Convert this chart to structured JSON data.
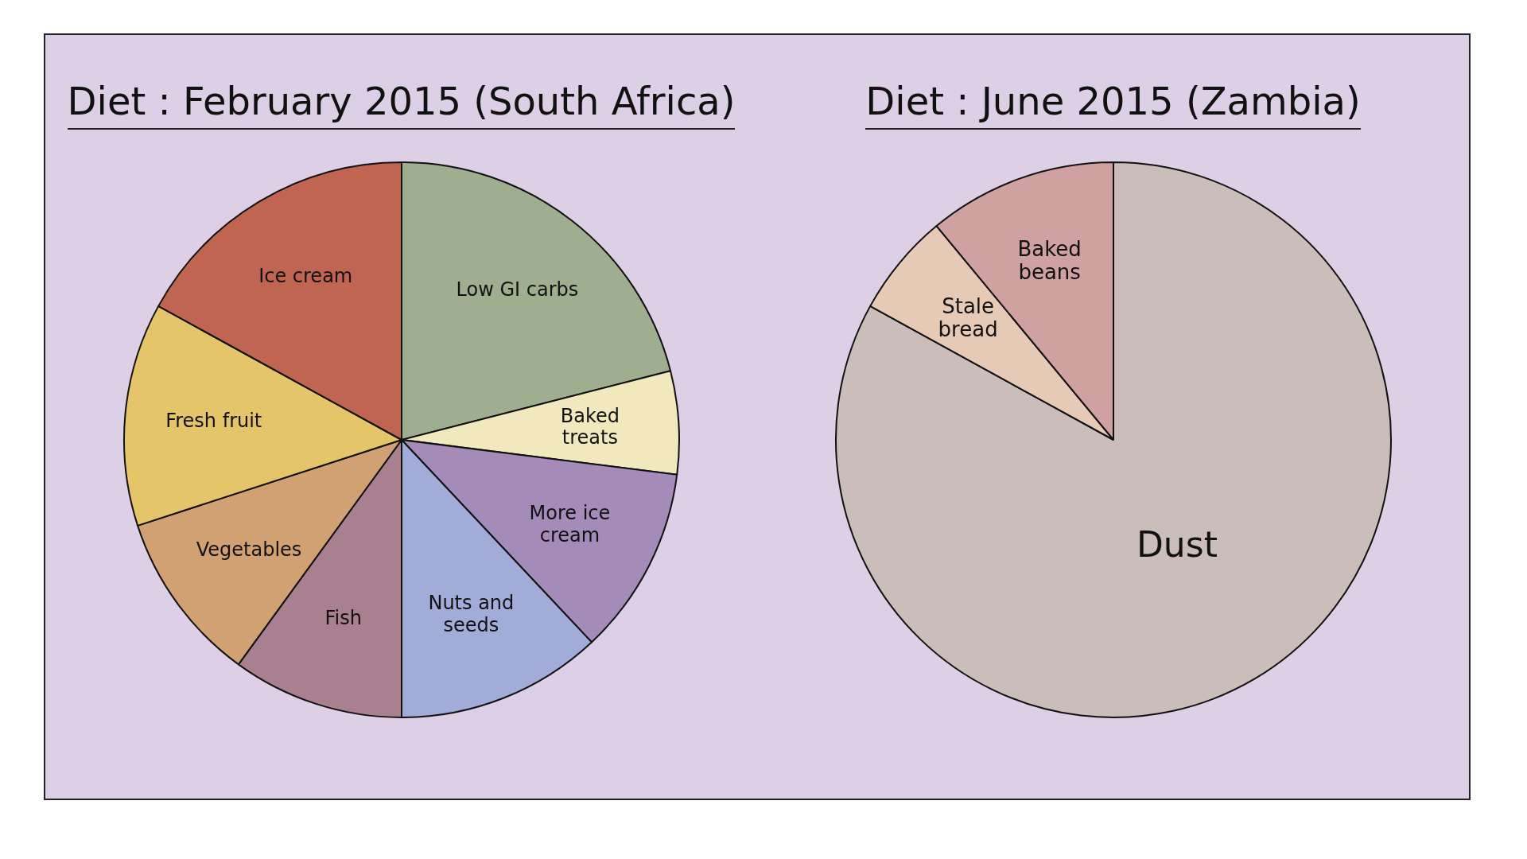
{
  "chart_data": [
    {
      "type": "pie",
      "title": "Diet : February 2015 (South Africa)",
      "categories": [
        "Low GI carbs",
        "Baked treats",
        "More ice cream",
        "Nuts and seeds",
        "Fish",
        "Vegetables",
        "Fresh fruit",
        "Ice cream"
      ],
      "values": [
        21,
        6,
        11,
        12,
        10,
        10,
        13,
        17
      ],
      "colors": [
        "#9fae8e",
        "#f2e8bd",
        "#a58cb8",
        "#a2acd8",
        "#a8808f",
        "#d1a173",
        "#e5c56a",
        "#c06552"
      ]
    },
    {
      "type": "pie",
      "title": "Diet : June 2015 (Zambia)",
      "categories": [
        "Dust",
        "Stale bread",
        "Baked beans"
      ],
      "values": [
        83,
        6,
        11
      ],
      "colors": [
        "#cbbdb9",
        "#e5cbb5",
        "#cfa1a0"
      ]
    }
  ]
}
